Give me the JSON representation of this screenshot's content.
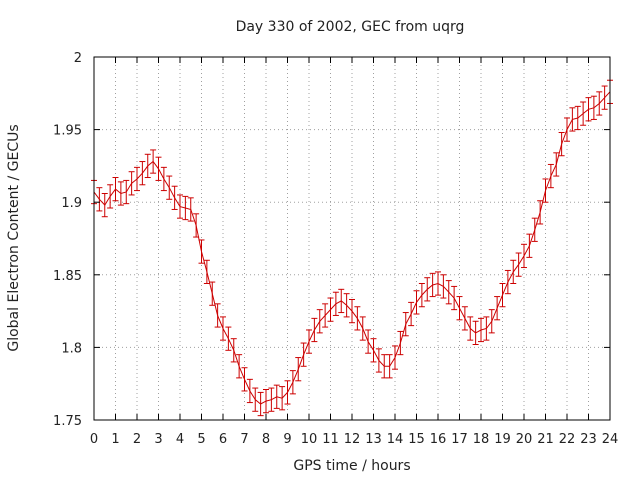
{
  "chart_data": {
    "type": "line",
    "title": "Day 330 of 2002, GEC from uqrg",
    "xlabel": "GPS time / hours",
    "ylabel": "Global Electron Content / GECUs",
    "xlim": [
      0,
      24
    ],
    "ylim": [
      1.75,
      2.0
    ],
    "x_ticks": [
      "0",
      "1",
      "2",
      "3",
      "4",
      "5",
      "6",
      "7",
      "8",
      "9",
      "10",
      "11",
      "12",
      "13",
      "14",
      "15",
      "16",
      "17",
      "18",
      "19",
      "20",
      "21",
      "22",
      "23",
      "24"
    ],
    "y_ticks": [
      "1.75",
      "1.8",
      "1.85",
      "1.9",
      "1.95",
      "2"
    ],
    "grid": true,
    "error_bars": true,
    "error_half_width": 0.008,
    "color": "#cc0000",
    "series": [
      {
        "x": [
          0,
          0.25,
          0.5,
          0.75,
          1,
          1.25,
          1.5,
          1.75,
          2,
          2.25,
          2.5,
          2.75,
          3,
          3.25,
          3.5,
          3.75,
          4,
          4.25,
          4.5,
          4.75,
          5,
          5.25,
          5.5,
          5.75,
          6,
          6.25,
          6.5,
          6.75,
          7,
          7.25,
          7.5,
          7.75,
          8,
          8.25,
          8.5,
          8.75,
          9,
          9.25,
          9.5,
          9.75,
          10,
          10.25,
          10.5,
          10.75,
          11,
          11.25,
          11.5,
          11.75,
          12,
          12.25,
          12.5,
          12.75,
          13,
          13.25,
          13.5,
          13.75,
          14,
          14.25,
          14.5,
          14.75,
          15,
          15.25,
          15.5,
          15.75,
          16,
          16.25,
          16.5,
          16.75,
          17,
          17.25,
          17.5,
          17.75,
          18,
          18.25,
          18.5,
          18.75,
          19,
          19.25,
          19.5,
          19.75,
          20,
          20.25,
          20.5,
          20.75,
          21,
          21.25,
          21.5,
          21.75,
          22,
          22.25,
          22.5,
          22.75,
          23,
          23.25,
          23.5,
          23.75,
          24
        ],
        "values": [
          1.907,
          1.902,
          1.898,
          1.904,
          1.909,
          1.906,
          1.907,
          1.913,
          1.916,
          1.92,
          1.925,
          1.928,
          1.923,
          1.916,
          1.91,
          1.903,
          1.897,
          1.896,
          1.895,
          1.884,
          1.866,
          1.852,
          1.837,
          1.822,
          1.813,
          1.806,
          1.798,
          1.787,
          1.778,
          1.77,
          1.764,
          1.761,
          1.763,
          1.764,
          1.766,
          1.765,
          1.769,
          1.776,
          1.785,
          1.795,
          1.804,
          1.812,
          1.818,
          1.822,
          1.826,
          1.83,
          1.832,
          1.829,
          1.825,
          1.82,
          1.813,
          1.804,
          1.798,
          1.791,
          1.787,
          1.787,
          1.793,
          1.803,
          1.816,
          1.823,
          1.831,
          1.836,
          1.84,
          1.843,
          1.844,
          1.842,
          1.838,
          1.834,
          1.827,
          1.82,
          1.813,
          1.81,
          1.812,
          1.813,
          1.818,
          1.827,
          1.836,
          1.845,
          1.852,
          1.857,
          1.863,
          1.87,
          1.881,
          1.893,
          1.908,
          1.918,
          1.926,
          1.94,
          1.95,
          1.957,
          1.958,
          1.961,
          1.964,
          1.965,
          1.968,
          1.972,
          1.976
        ]
      }
    ]
  }
}
